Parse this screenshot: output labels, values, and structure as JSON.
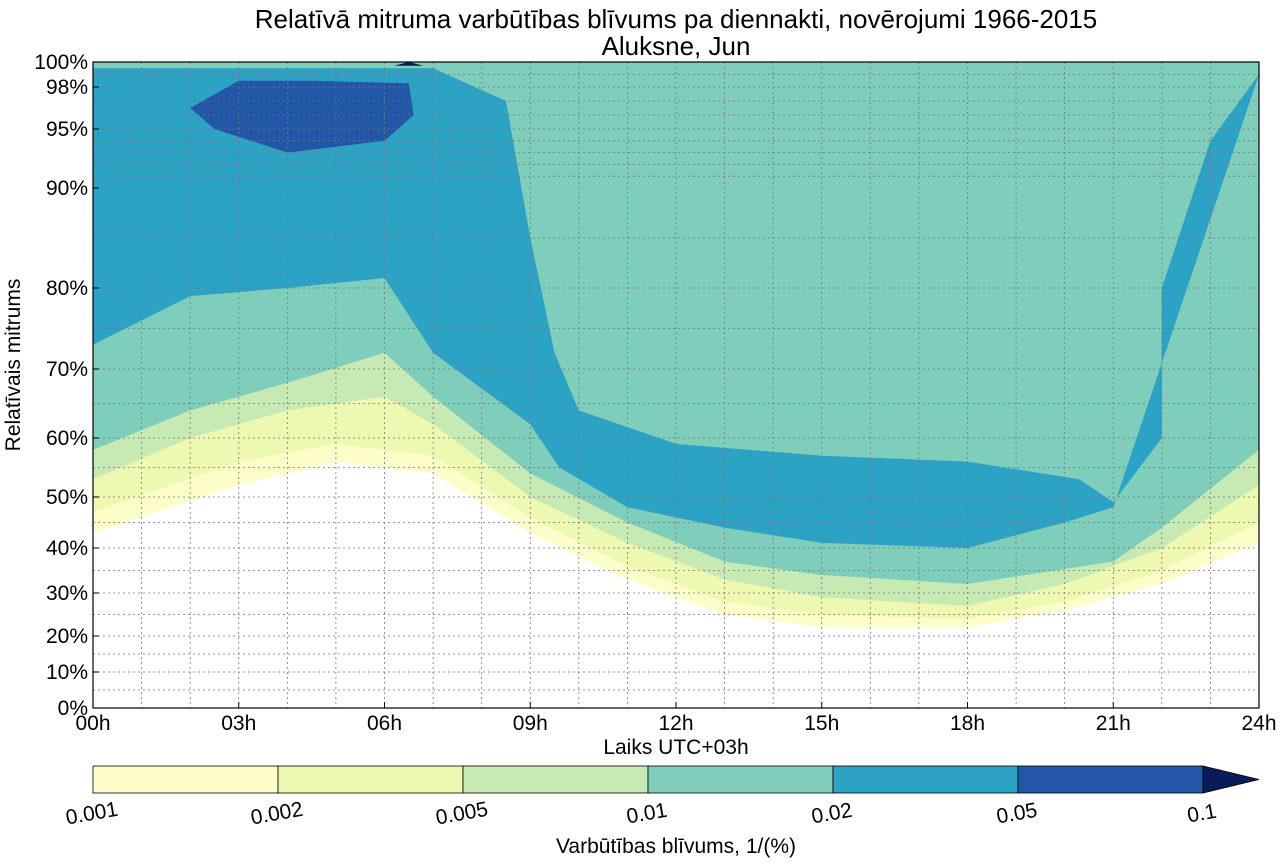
{
  "chart_data": {
    "type": "heatmap",
    "subtype": "filled-contour",
    "title": "Relatīvā mitruma varbūtības blīvums pa diennakti, novērojumi 1966-2015",
    "subtitle": "Aluksne, Jun",
    "xlabel": "Laiks UTC+03h",
    "ylabel": "Relatīvais mitrums",
    "x_ticks": [
      "00h",
      "03h",
      "06h",
      "09h",
      "12h",
      "15h",
      "18h",
      "21h",
      "24h"
    ],
    "y_ticks": [
      "0%",
      "10%",
      "20%",
      "30%",
      "40%",
      "50%",
      "60%",
      "70%",
      "80%",
      "90%",
      "95%",
      "98%",
      "100%"
    ],
    "y_tick_values": [
      0,
      10,
      20,
      30,
      40,
      50,
      60,
      70,
      80,
      90,
      95,
      98,
      100
    ],
    "xlim": [
      0,
      24
    ],
    "ylim": [
      0,
      100
    ],
    "y_scale": "nonlinear (stretched toward 100%)",
    "grid": true,
    "colorbar": {
      "label": "Varbūtības blīvums, 1/(%)",
      "levels": [
        "0.001",
        "0.002",
        "0.005",
        "0.01",
        "0.02",
        "0.05",
        "0.1"
      ],
      "colors": [
        "#fcfdc9",
        "#edf8b1",
        "#c7e9b4",
        "#7fcdbb",
        "#2ca2c4",
        "#2157a6",
        "#081d58"
      ],
      "extend": "max",
      "placement": "bottom"
    },
    "contour_bands": [
      {
        "level": "0.001",
        "lower": [
          [
            0,
            43
          ],
          [
            3,
            52
          ],
          [
            5,
            56
          ],
          [
            7,
            54
          ],
          [
            9,
            43
          ],
          [
            11,
            33
          ],
          [
            13,
            25
          ],
          [
            15,
            22
          ],
          [
            18,
            22
          ],
          [
            20,
            26
          ],
          [
            22,
            32
          ],
          [
            24,
            41
          ]
        ]
      },
      {
        "level": "0.002",
        "lower": [
          [
            0,
            47
          ],
          [
            3,
            56
          ],
          [
            5,
            59
          ],
          [
            7,
            57
          ],
          [
            9,
            46
          ],
          [
            11,
            36
          ],
          [
            13,
            28
          ],
          [
            15,
            25
          ],
          [
            18,
            24
          ],
          [
            20,
            28
          ],
          [
            22,
            35
          ],
          [
            24,
            45
          ]
        ]
      },
      {
        "level": "0.005",
        "lower": [
          [
            0,
            53
          ],
          [
            2,
            60
          ],
          [
            4,
            64
          ],
          [
            6,
            66
          ],
          [
            7,
            62
          ],
          [
            9,
            50
          ],
          [
            11,
            41
          ],
          [
            13,
            33
          ],
          [
            15,
            29
          ],
          [
            18,
            27
          ],
          [
            20,
            32
          ],
          [
            22,
            40
          ],
          [
            24,
            52
          ]
        ]
      },
      {
        "level": "0.01",
        "lower": [
          [
            0,
            58
          ],
          [
            2,
            64
          ],
          [
            4,
            68
          ],
          [
            6,
            72
          ],
          [
            7,
            66
          ],
          [
            9,
            54
          ],
          [
            11,
            45
          ],
          [
            13,
            37
          ],
          [
            15,
            34
          ],
          [
            18,
            32
          ],
          [
            21,
            37
          ],
          [
            22,
            44
          ],
          [
            24,
            58
          ]
        ]
      },
      {
        "level": "0.02",
        "lower": [
          [
            0,
            73
          ],
          [
            2,
            79
          ],
          [
            4,
            80
          ],
          [
            6,
            81
          ],
          [
            7,
            72
          ],
          [
            9,
            62
          ],
          [
            9.6,
            55
          ],
          [
            11,
            48
          ],
          [
            13,
            44
          ],
          [
            15,
            41
          ],
          [
            18,
            40
          ],
          [
            20,
            45
          ],
          [
            21,
            48
          ]
        ],
        "upper": [
          [
            24,
            99
          ],
          [
            23,
            94
          ],
          [
            22,
            80
          ],
          [
            22,
            60
          ],
          [
            21,
            49
          ],
          [
            20.3,
            53
          ],
          [
            18,
            56
          ],
          [
            15,
            57
          ],
          [
            12,
            59
          ],
          [
            10,
            64
          ],
          [
            9.5,
            72
          ],
          [
            9,
            85
          ],
          [
            8.5,
            97
          ],
          [
            7,
            99.5
          ],
          [
            0,
            99.5
          ]
        ]
      },
      {
        "level": "0.05",
        "region": [
          [
            2,
            96.5
          ],
          [
            3,
            98.5
          ],
          [
            4.5,
            98.5
          ],
          [
            6.5,
            98.3
          ],
          [
            6.6,
            96
          ],
          [
            6,
            94
          ],
          [
            4,
            93
          ],
          [
            2.5,
            95
          ]
        ]
      },
      {
        "level": "0.1",
        "region": [
          [
            6.2,
            99.7
          ],
          [
            6.5,
            100
          ],
          [
            6.8,
            99.7
          ]
        ]
      }
    ]
  }
}
